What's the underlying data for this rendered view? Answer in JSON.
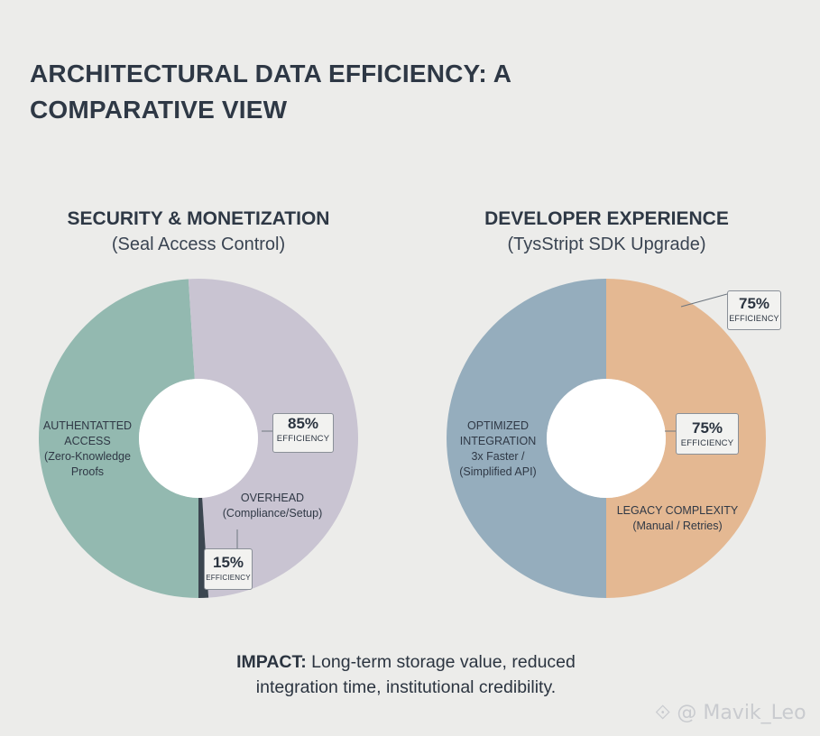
{
  "title": "ARCHITECTURAL DATA EFFICIENCY: A COMPARATIVE VIEW",
  "chart_data": [
    {
      "type": "pie",
      "title": "SECURITY & MONETIZATION",
      "subtitle": "(Seal Access Control)",
      "slices": [
        {
          "label": "AUTHENTATTED ACCESS (Zero-Knowledge Proofs",
          "value": 49,
          "color": "#93b9b0"
        },
        {
          "label": "OVERHEAD (Compliance/Setup)",
          "value": 50,
          "color": "#c9c4d2"
        },
        {
          "label": "",
          "value": 1,
          "color": "#3b4650"
        }
      ],
      "annotations": [
        {
          "value": "85%",
          "text": "EFFICIENCY"
        },
        {
          "value": "15%",
          "text": "EFFICIENCY"
        }
      ]
    },
    {
      "type": "pie",
      "title": "DEVELOPER EXPERIENCE",
      "subtitle": "(TysStript SDK Upgrade)",
      "slices": [
        {
          "label": "OPTIMIZED INTEGRATION 3x Faster / (Simplified API)",
          "value": 50,
          "color": "#95adbd"
        },
        {
          "label": "LEGACY COMPLEXITY (Manual / Retries)",
          "value": 50,
          "color": "#e4b892"
        }
      ],
      "annotations": [
        {
          "value": "75%",
          "text": "EFFICIENCY"
        },
        {
          "value": "75%",
          "text": "EFFICIENCY"
        }
      ]
    }
  ],
  "labels": {
    "left_a_l1": "AUTHENTATTED",
    "left_a_l2": "ACCESS",
    "left_a_l3": "(Zero-Knowledge",
    "left_a_l4": "Proofs",
    "left_b_l1": "OVERHEAD",
    "left_b_l2": "(Compliance/Setup)",
    "right_a_l1": "OPTIMIZED",
    "right_a_l2": "INTEGRATION",
    "right_a_l3": "3x Faster /",
    "right_a_l4": "(Simplified API)",
    "right_b_l1": "LEGACY COMPLEXITY",
    "right_b_l2": "(Manual / Retries)"
  },
  "impact": {
    "bold": "IMPACT:",
    "line1_rest": " Long-term storage value, reduced",
    "line2": "integration time, institutional credibility."
  },
  "watermark": "@ Mavik_Leo"
}
